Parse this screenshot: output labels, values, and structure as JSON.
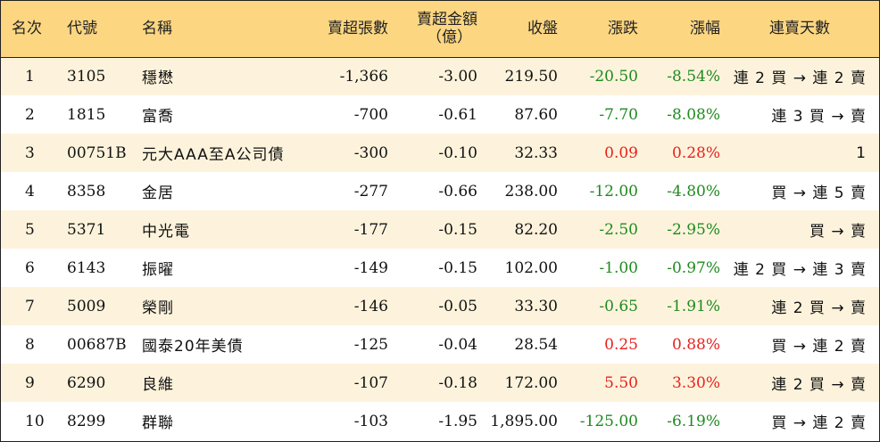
{
  "headers": {
    "rank": "名次",
    "code": "代號",
    "name": "名稱",
    "net_sell_lots": "賣超張數",
    "net_sell_amount_line1": "賣超金額",
    "net_sell_amount_line2": "（億）",
    "close": "收盤",
    "change": "漲跌",
    "pct": "漲幅",
    "streak": "連賣天數"
  },
  "colors": {
    "header_bg": "#fcd681",
    "stripe_bg": "#fdf3dc",
    "up": "#e8211d",
    "down": "#1f8a1f"
  },
  "rows": [
    {
      "rank": "1",
      "code": "3105",
      "name": "穩懋",
      "lots": "-1,366",
      "amount": "-3.00",
      "close": "219.50",
      "change": "-20.50",
      "pct": "-8.54%",
      "streak": "連 2 買 → 連 2 賣",
      "dir": "down"
    },
    {
      "rank": "2",
      "code": "1815",
      "name": "富喬",
      "lots": "-700",
      "amount": "-0.61",
      "close": "87.60",
      "change": "-7.70",
      "pct": "-8.08%",
      "streak": "連 3 買 → 賣",
      "dir": "down"
    },
    {
      "rank": "3",
      "code": "00751B",
      "name": "元大AAA至A公司債",
      "lots": "-300",
      "amount": "-0.10",
      "close": "32.33",
      "change": "0.09",
      "pct": "0.28%",
      "streak": "1",
      "dir": "up"
    },
    {
      "rank": "4",
      "code": "8358",
      "name": "金居",
      "lots": "-277",
      "amount": "-0.66",
      "close": "238.00",
      "change": "-12.00",
      "pct": "-4.80%",
      "streak": "買 → 連 5 賣",
      "dir": "down"
    },
    {
      "rank": "5",
      "code": "5371",
      "name": "中光電",
      "lots": "-177",
      "amount": "-0.15",
      "close": "82.20",
      "change": "-2.50",
      "pct": "-2.95%",
      "streak": "買 → 賣",
      "dir": "down"
    },
    {
      "rank": "6",
      "code": "6143",
      "name": "振曜",
      "lots": "-149",
      "amount": "-0.15",
      "close": "102.00",
      "change": "-1.00",
      "pct": "-0.97%",
      "streak": "連 2 買 → 連 3 賣",
      "dir": "down"
    },
    {
      "rank": "7",
      "code": "5009",
      "name": "榮剛",
      "lots": "-146",
      "amount": "-0.05",
      "close": "33.30",
      "change": "-0.65",
      "pct": "-1.91%",
      "streak": "連 2 買 → 賣",
      "dir": "down"
    },
    {
      "rank": "8",
      "code": "00687B",
      "name": "國泰20年美債",
      "lots": "-125",
      "amount": "-0.04",
      "close": "28.54",
      "change": "0.25",
      "pct": "0.88%",
      "streak": "買 → 連 2 賣",
      "dir": "up"
    },
    {
      "rank": "9",
      "code": "6290",
      "name": "良維",
      "lots": "-107",
      "amount": "-0.18",
      "close": "172.00",
      "change": "5.50",
      "pct": "3.30%",
      "streak": "連 2 買 → 賣",
      "dir": "up"
    },
    {
      "rank": "10",
      "code": "8299",
      "name": "群聯",
      "lots": "-103",
      "amount": "-1.95",
      "close": "1,895.00",
      "change": "-125.00",
      "pct": "-6.19%",
      "streak": "買 → 連 2 賣",
      "dir": "down"
    }
  ]
}
